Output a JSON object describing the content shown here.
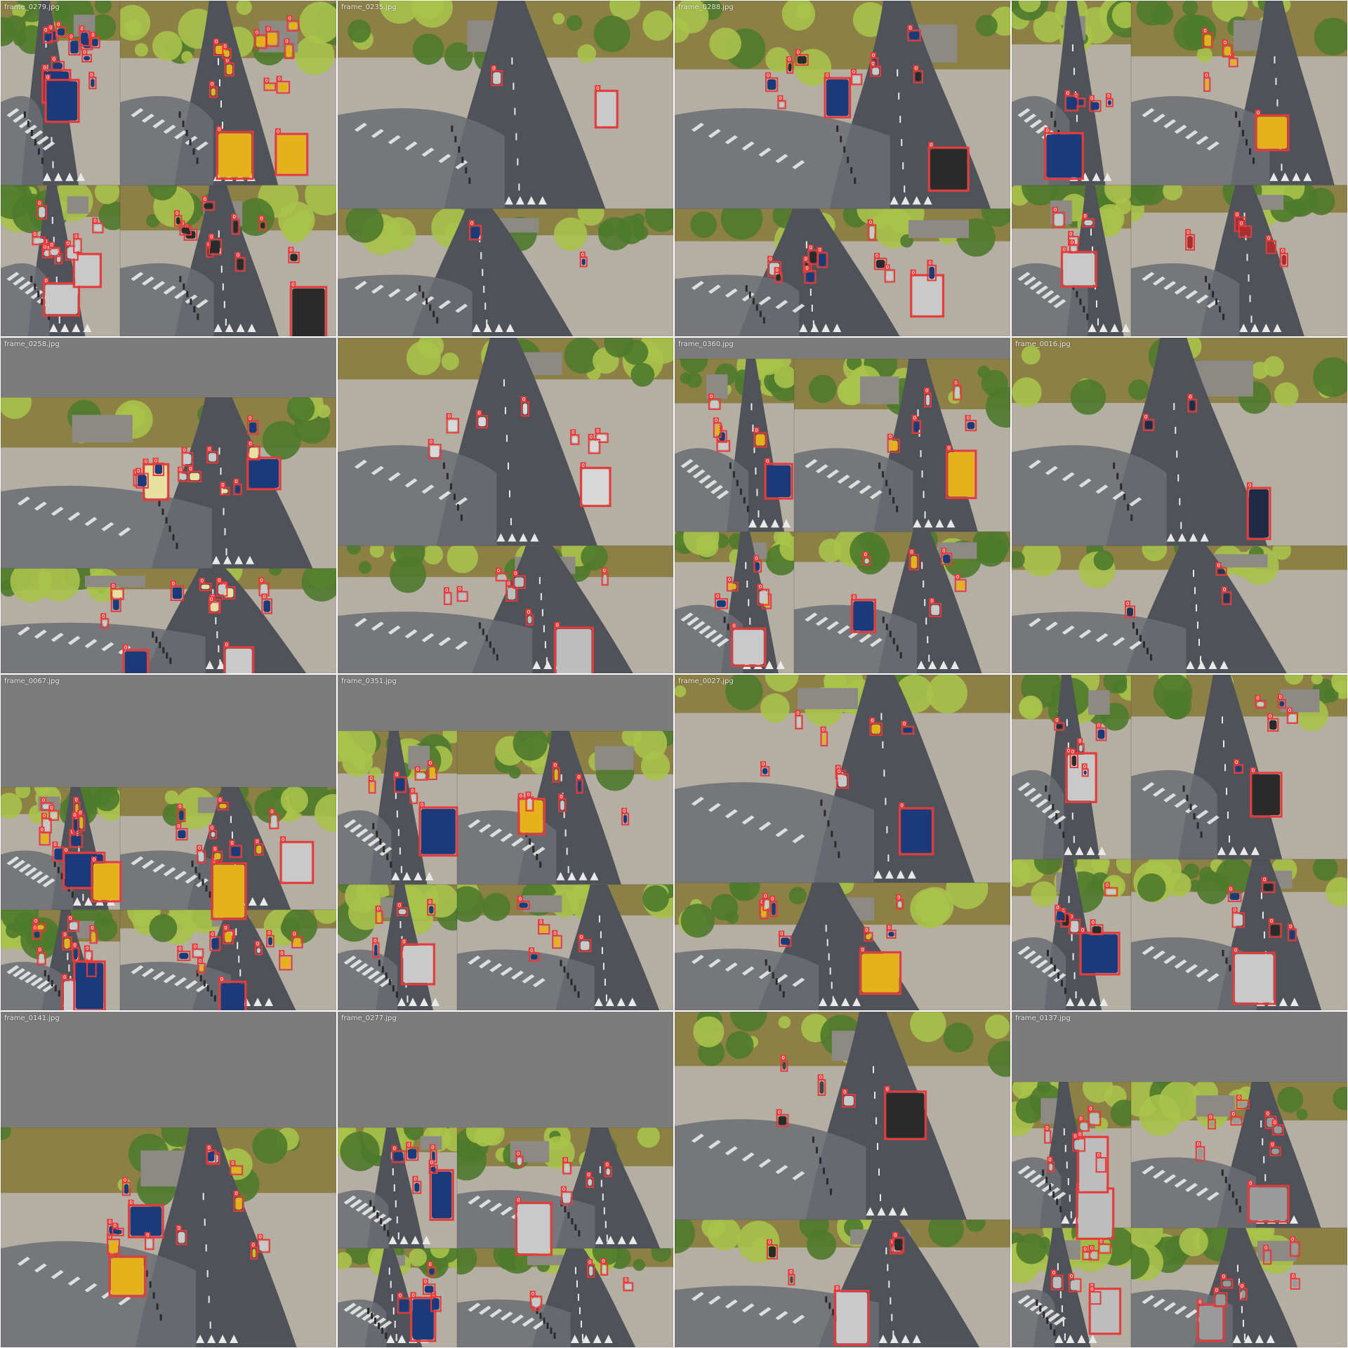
{
  "mosaic": {
    "tiles": [
      {
        "filename": "frame_0279.jpg",
        "frame_count": 4,
        "box_count": 46,
        "box_label": "0",
        "vehicle_colors": [
          "#1c3a7a",
          "#e6b21c",
          "#c9c9c9",
          "#2a2a2a"
        ]
      },
      {
        "filename": "frame_0235.jpg",
        "frame_count": 2,
        "box_count": 4,
        "box_label": "0",
        "vehicle_colors": [
          "#c9c9c9",
          "#1c3a7a"
        ]
      },
      {
        "filename": "frame_0288.jpg",
        "frame_count": 2,
        "box_count": 22,
        "box_label": "0",
        "vehicle_colors": [
          "#2a2a2a",
          "#c9c9c9",
          "#1c3a7a"
        ]
      },
      {
        "filename": "",
        "frame_count": 4,
        "box_count": 20,
        "box_label": "0",
        "vehicle_colors": [
          "#1c3a7a",
          "#e6b21c",
          "#c9c9c9",
          "#b22a2a"
        ]
      },
      {
        "filename": "frame_0258.jpg",
        "frame_count": 2,
        "box_count": 26,
        "box_label": "0",
        "vehicle_colors": [
          "#1c3a7a",
          "#c9c9c9",
          "#e8e0a0"
        ]
      },
      {
        "filename": "",
        "frame_count": 2,
        "box_count": 16,
        "box_label": "0",
        "vehicle_colors": [
          "#d8d8d8",
          "#bdbdbd"
        ]
      },
      {
        "filename": "frame_0360.jpg",
        "frame_count": 4,
        "box_count": 24,
        "box_label": "0",
        "vehicle_colors": [
          "#1c3a7a",
          "#e6b21c",
          "#c9c9c9"
        ]
      },
      {
        "filename": "frame_0016.jpg",
        "frame_count": 2,
        "box_count": 6,
        "box_label": "0",
        "vehicle_colors": [
          "#1f2a44",
          "#2a3350"
        ]
      },
      {
        "filename": "frame_0067.jpg",
        "frame_count": 4,
        "box_count": 44,
        "box_label": "0",
        "vehicle_colors": [
          "#1c3a7a",
          "#e6b21c",
          "#c9c9c9"
        ]
      },
      {
        "filename": "frame_0351.jpg",
        "frame_count": 4,
        "box_count": 22,
        "box_label": "0",
        "vehicle_colors": [
          "#1c3a7a",
          "#e6b21c",
          "#c9c9c9"
        ]
      },
      {
        "filename": "frame_0027.jpg",
        "frame_count": 2,
        "box_count": 16,
        "box_label": "0",
        "vehicle_colors": [
          "#1c3a7a",
          "#e6b21c",
          "#c9c9c9"
        ]
      },
      {
        "filename": "",
        "frame_count": 4,
        "box_count": 24,
        "box_label": "0",
        "vehicle_colors": [
          "#c9c9c9",
          "#2a2a2a",
          "#1c3a7a"
        ]
      },
      {
        "filename": "frame_0141.jpg",
        "frame_count": 1,
        "box_count": 14,
        "box_label": "0",
        "vehicle_colors": [
          "#1c3a7a",
          "#e6b21c",
          "#c9c9c9"
        ]
      },
      {
        "filename": "frame_0277.jpg",
        "frame_count": 4,
        "box_count": 22,
        "box_label": "0",
        "vehicle_colors": [
          "#1c3a7a",
          "#c9c9c9"
        ]
      },
      {
        "filename": "",
        "frame_count": 2,
        "box_count": 10,
        "box_label": "0",
        "vehicle_colors": [
          "#2a2a2a",
          "#c9c9c9",
          "#444444"
        ]
      },
      {
        "filename": "frame_0137.jpg",
        "frame_count": 4,
        "box_count": 30,
        "box_label": "0",
        "vehicle_colors": [
          "#bdbdbd",
          "#9a9a9a"
        ]
      }
    ],
    "colors": {
      "background": "#7b7b7b",
      "box_stroke": "#e83a3a",
      "road": "#4f5258",
      "road_light": "#6a6d73",
      "marking": "#e9e9e9",
      "sidewalk": "#b4aea3",
      "grass": "#8c8046",
      "foliage": "#4e7a2c",
      "foliage_light": "#a9c24a",
      "building": "#8d8a86",
      "curb": "#2a2a2a"
    }
  }
}
